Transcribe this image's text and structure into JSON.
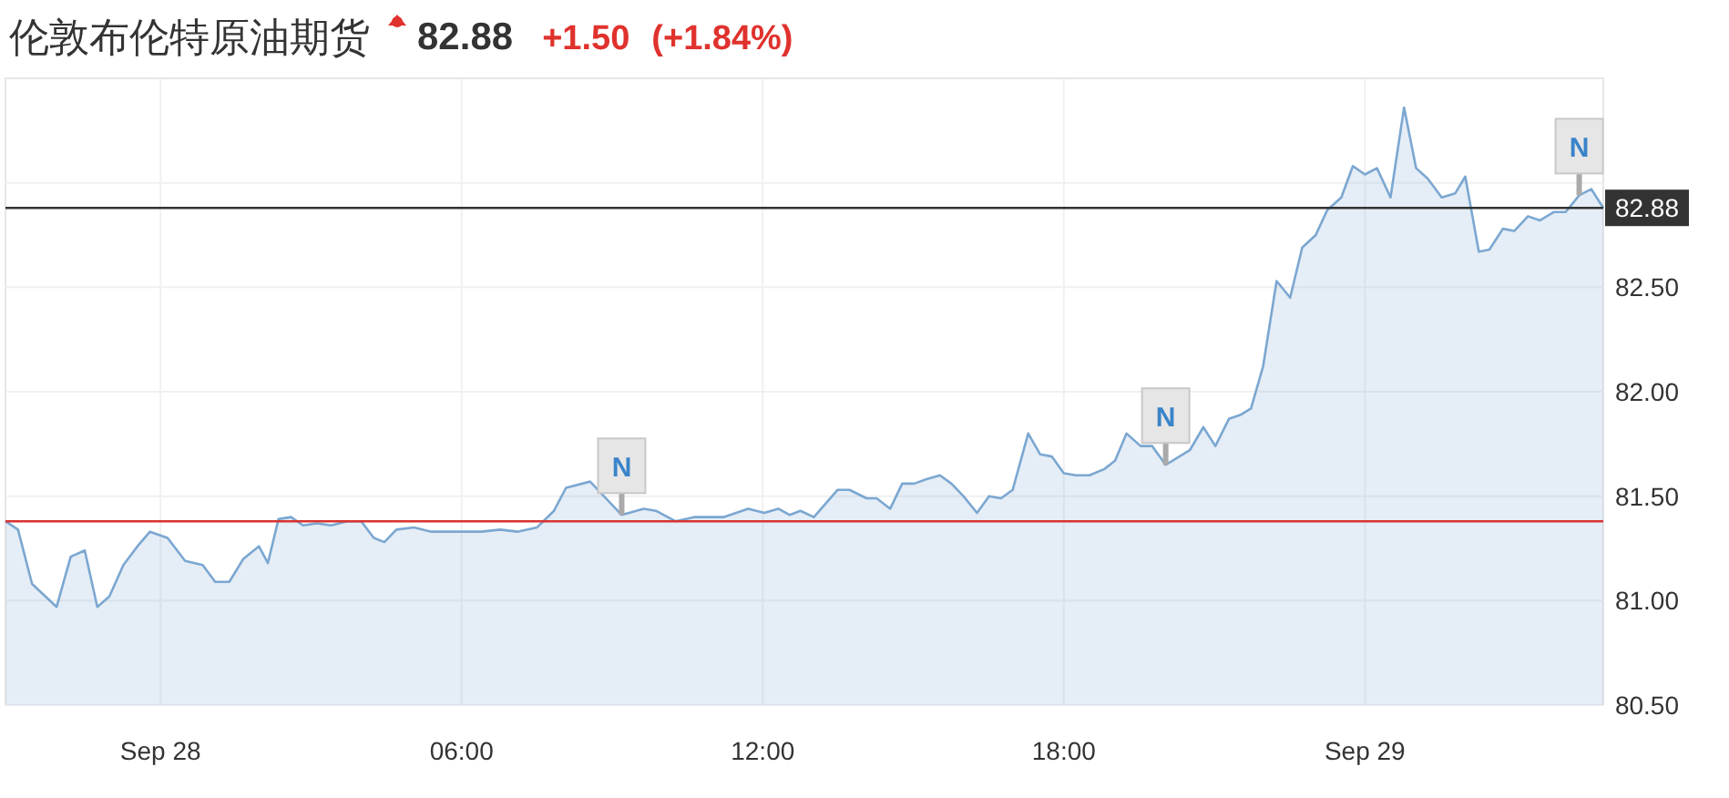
{
  "chart_data": {
    "type": "area",
    "title": "伦敦布伦特原油期货",
    "annotations": [
      "82.88",
      "+1.50",
      "(+1.84%)",
      {
        "text": "N",
        "x": 9.19,
        "y": 81.41
      },
      {
        "text": "N",
        "x": 20.03,
        "y": 81.65
      },
      {
        "text": "N",
        "x": 28.27,
        "y": 82.94
      }
    ],
    "series": [
      {
        "color": "#7ba7d1",
        "x": [
          -3.09,
          -2.84,
          -2.56,
          -2.07,
          -1.79,
          -1.51,
          -1.26,
          -1.02,
          -0.74,
          -0.46,
          -0.21,
          0.14,
          0.49,
          0.84,
          1.09,
          1.37,
          1.65,
          1.96,
          2.14,
          2.35,
          2.6,
          2.84,
          3.12,
          3.4,
          3.72,
          4.0,
          4.25,
          4.46,
          4.7,
          5.05,
          5.4,
          5.75,
          6.0,
          6.39,
          6.77,
          7.11,
          7.5,
          7.84,
          8.08,
          8.56,
          9.19,
          9.63,
          9.87,
          10.26,
          10.65,
          11.23,
          11.71,
          12.03,
          12.31,
          12.54,
          12.75,
          13.02,
          13.49,
          13.73,
          14.07,
          14.27,
          14.54,
          14.78,
          15.02,
          15.25,
          15.53,
          15.76,
          16.0,
          16.27,
          16.51,
          16.75,
          16.98,
          17.29,
          17.53,
          17.76,
          18.0,
          18.24,
          18.51,
          18.81,
          19.02,
          19.25,
          19.53,
          19.76,
          20.03,
          20.51,
          20.78,
          21.02,
          21.29,
          21.53,
          21.73,
          21.97,
          22.24,
          22.51,
          22.75,
          23.02,
          23.25,
          23.53,
          23.76,
          24.0,
          24.24,
          24.51,
          24.78,
          25.02,
          25.25,
          25.53,
          25.8,
          26.0,
          26.27,
          26.48,
          26.75,
          26.98,
          27.25,
          27.49,
          27.76,
          28.0,
          28.27,
          28.51,
          28.75
        ],
        "values": [
          81.38,
          81.34,
          81.08,
          80.97,
          81.21,
          81.24,
          80.97,
          81.02,
          81.17,
          81.26,
          81.33,
          81.3,
          81.19,
          81.17,
          81.09,
          81.09,
          81.2,
          81.26,
          81.18,
          81.39,
          81.4,
          81.36,
          81.37,
          81.36,
          81.38,
          81.38,
          81.3,
          81.28,
          81.34,
          81.35,
          81.33,
          81.33,
          81.33,
          81.33,
          81.34,
          81.33,
          81.35,
          81.43,
          81.54,
          81.57,
          81.41,
          81.44,
          81.43,
          81.38,
          81.4,
          81.4,
          81.44,
          81.42,
          81.44,
          81.41,
          81.43,
          81.4,
          81.53,
          81.53,
          81.49,
          81.49,
          81.44,
          81.56,
          81.56,
          81.58,
          81.6,
          81.56,
          81.5,
          81.42,
          81.5,
          81.49,
          81.53,
          81.8,
          81.7,
          81.69,
          81.61,
          81.6,
          81.6,
          81.63,
          81.67,
          81.8,
          81.74,
          81.74,
          81.65,
          81.72,
          81.83,
          81.74,
          81.87,
          81.89,
          81.92,
          82.12,
          82.53,
          82.45,
          82.69,
          82.75,
          82.87,
          82.93,
          83.08,
          83.04,
          83.07,
          82.93,
          83.36,
          83.07,
          83.02,
          82.93,
          82.95,
          83.03,
          82.67,
          82.68,
          82.78,
          82.77,
          82.84,
          82.82,
          82.86,
          82.86,
          82.94,
          82.97,
          82.88
        ]
      }
    ],
    "xlim": [
      -3.09,
      28.75
    ],
    "xticks": [
      {
        "value": 0,
        "label": "Sep 28"
      },
      {
        "value": 6,
        "label": "06:00"
      },
      {
        "value": 12,
        "label": "12:00"
      },
      {
        "value": 18,
        "label": "18:00"
      },
      {
        "value": 24,
        "label": "Sep 29"
      }
    ],
    "ylim": [
      80.5,
      83.5
    ],
    "yticks": [
      {
        "value": 80.5,
        "label": "80.50"
      },
      {
        "value": 81,
        "label": "81.00"
      },
      {
        "value": 81.5,
        "label": "81.50"
      },
      {
        "value": 82,
        "label": "82.00"
      },
      {
        "value": 82.5,
        "label": "82.50"
      },
      {
        "value": 83,
        "label": null
      }
    ],
    "ref_lines": [
      {
        "axis": "y",
        "value": 82.88,
        "label": "82.88",
        "color": "#333333"
      },
      {
        "axis": "y",
        "value": 81.38,
        "label": null,
        "color": "#d9322e"
      }
    ],
    "grid": true
  }
}
